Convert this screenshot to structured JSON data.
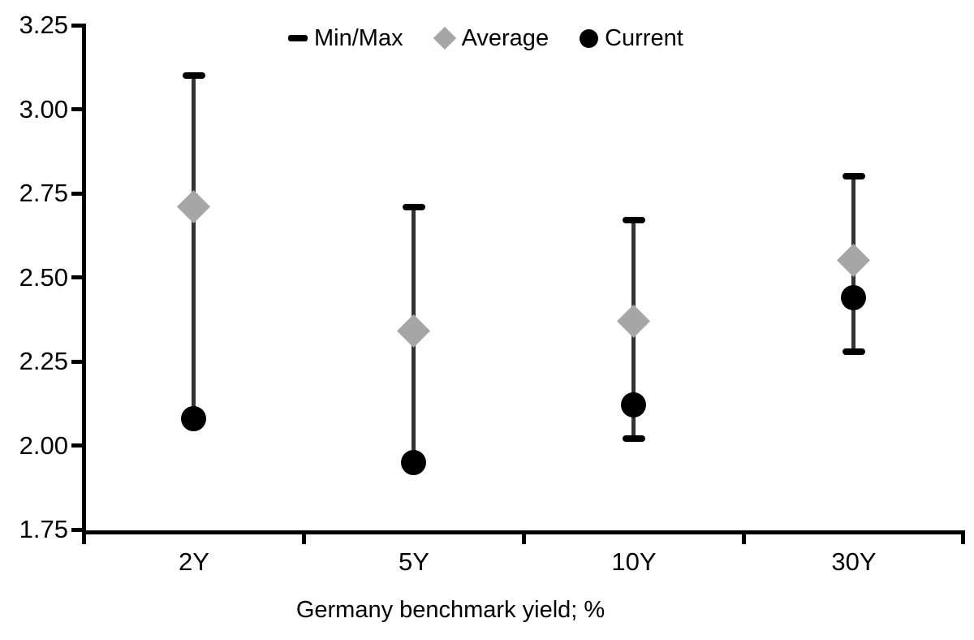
{
  "chart_data": {
    "type": "scatter",
    "subtype": "min-max-range-with-markers",
    "title": "",
    "xlabel": "Germany benchmark yield; %",
    "ylabel": "",
    "categories": [
      "2Y",
      "5Y",
      "10Y",
      "30Y"
    ],
    "y_ticks": [
      "3.25",
      "3.00",
      "2.75",
      "2.50",
      "2.25",
      "2.00",
      "1.75"
    ],
    "ylim": [
      1.75,
      3.25
    ],
    "grid": false,
    "legend_position": "top-center",
    "legend": [
      {
        "label": "Min/Max",
        "marker": "dash"
      },
      {
        "label": "Average",
        "marker": "diamond"
      },
      {
        "label": "Current",
        "marker": "circle"
      }
    ],
    "series": [
      {
        "name": "Min/Max",
        "type": "range",
        "min": [
          2.08,
          1.95,
          2.02,
          2.28
        ],
        "max": [
          3.1,
          2.71,
          2.67,
          2.8
        ]
      },
      {
        "name": "Average",
        "type": "point",
        "marker": "diamond",
        "values": [
          2.71,
          2.34,
          2.37,
          2.55
        ]
      },
      {
        "name": "Current",
        "type": "point",
        "marker": "circle",
        "values": [
          2.08,
          1.95,
          2.12,
          2.44
        ]
      }
    ],
    "colors": {
      "range_line": "#333333",
      "cap": "#000000",
      "average": "#a6a6a6",
      "current": "#000000",
      "text": "#000000"
    }
  }
}
